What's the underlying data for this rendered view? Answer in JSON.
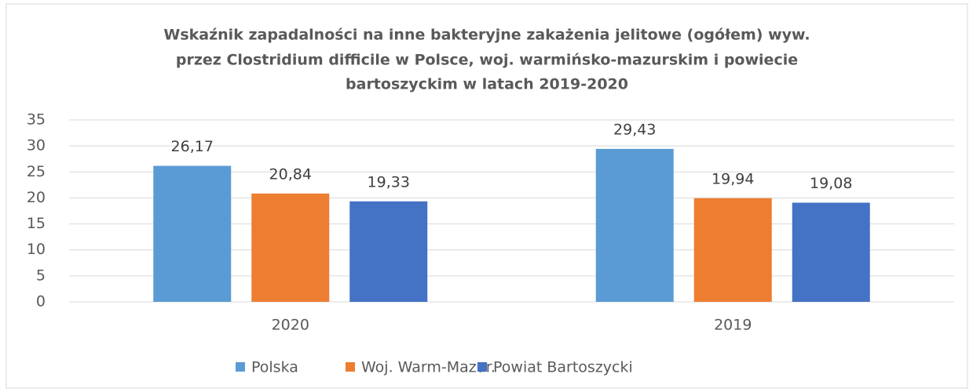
{
  "chart_data": {
    "type": "bar",
    "title": [
      "Wskaźnik zapadalności na inne bakteryjne zakażenia jelitowe (ogółem) wyw.",
      "przez Clostridium difficile w Polsce, woj. warmińsko-mazurskim i powiecie",
      "bartoszyckim w latach 2019-2020"
    ],
    "categories": [
      "2020",
      "2019"
    ],
    "series": [
      {
        "name": "Polska",
        "color": "#5b9bd5",
        "values": [
          26.17,
          29.43
        ],
        "value_labels": [
          "26,17",
          "29,43"
        ]
      },
      {
        "name": "Woj. Warm-Mazur.",
        "color": "#ed7d31",
        "values": [
          20.84,
          19.94
        ],
        "value_labels": [
          "20,84",
          "19,94"
        ]
      },
      {
        "name": "Powiat Bartoszycki",
        "color": "#4472c4",
        "values": [
          19.33,
          19.08
        ],
        "value_labels": [
          "19,33",
          "19,08"
        ]
      }
    ],
    "ylim": [
      0,
      35
    ],
    "yticks": [
      0,
      5,
      10,
      15,
      20,
      25,
      30,
      35
    ],
    "grid": true,
    "legend": "bottom"
  }
}
